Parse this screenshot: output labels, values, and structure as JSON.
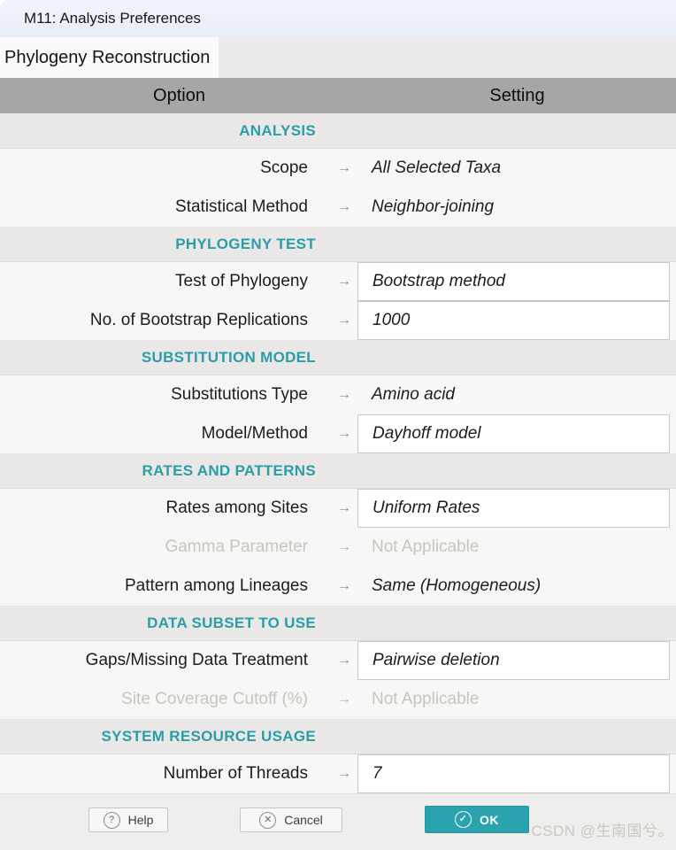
{
  "window": {
    "title": "M11: Analysis Preferences"
  },
  "tab": {
    "label": "Phylogeny Reconstruction"
  },
  "table": {
    "headers": {
      "option": "Option",
      "setting": "Setting"
    },
    "arrow": "→",
    "rows": [
      {
        "type": "section",
        "label": "ANALYSIS"
      },
      {
        "type": "row",
        "label": "Scope",
        "value": "All Selected Taxa",
        "boxed": false,
        "disabled": false
      },
      {
        "type": "row",
        "label": "Statistical Method",
        "value": "Neighbor-joining",
        "boxed": false,
        "disabled": false
      },
      {
        "type": "section",
        "label": "PHYLOGENY TEST"
      },
      {
        "type": "row",
        "label": "Test of Phylogeny",
        "value": "Bootstrap method",
        "boxed": true,
        "disabled": false
      },
      {
        "type": "row",
        "label": "No. of Bootstrap Replications",
        "value": "1000",
        "boxed": true,
        "disabled": false
      },
      {
        "type": "section",
        "label": "SUBSTITUTION MODEL"
      },
      {
        "type": "row",
        "label": "Substitutions Type",
        "value": "Amino acid",
        "boxed": false,
        "disabled": false
      },
      {
        "type": "row",
        "label": "Model/Method",
        "value": "Dayhoff model",
        "boxed": true,
        "disabled": false
      },
      {
        "type": "section",
        "label": "RATES AND PATTERNS"
      },
      {
        "type": "row",
        "label": "Rates among Sites",
        "value": "Uniform Rates",
        "boxed": true,
        "disabled": false
      },
      {
        "type": "row",
        "label": "Gamma Parameter",
        "value": "Not Applicable",
        "boxed": false,
        "disabled": true
      },
      {
        "type": "row",
        "label": "Pattern among Lineages",
        "value": "Same (Homogeneous)",
        "boxed": false,
        "disabled": false
      },
      {
        "type": "section",
        "label": "DATA SUBSET TO USE"
      },
      {
        "type": "row",
        "label": "Gaps/Missing Data Treatment",
        "value": "Pairwise deletion",
        "boxed": true,
        "disabled": false
      },
      {
        "type": "row",
        "label": "Site Coverage Cutoff (%)",
        "value": "Not Applicable",
        "boxed": false,
        "disabled": true
      },
      {
        "type": "section",
        "label": "SYSTEM RESOURCE USAGE"
      },
      {
        "type": "row",
        "label": "Number of Threads",
        "value": "7",
        "boxed": true,
        "disabled": false
      }
    ]
  },
  "footer": {
    "help_label": "Help",
    "cancel_label": "Cancel",
    "ok_label": "OK",
    "help_icon": "?",
    "cancel_icon": "✕",
    "ok_icon": "✓"
  },
  "watermark": "CSDN @生南国兮。",
  "colors": {
    "accent_teal": "#2a9daa",
    "ok_button": "#2aa3af",
    "header_gray": "#a8a6a4",
    "titlebar_blue": "#eaeff9",
    "disabled_text": "#c6c5c2"
  }
}
